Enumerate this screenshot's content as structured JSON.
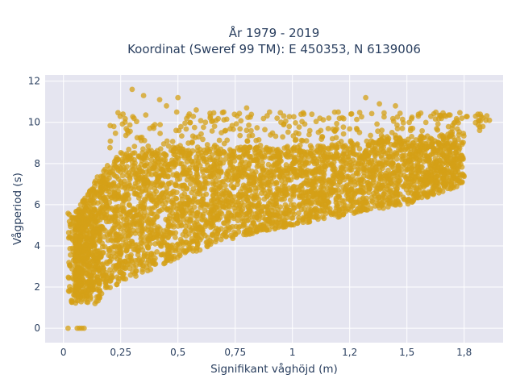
{
  "chart_data": {
    "type": "scatter",
    "title": [
      "År 1979 - 2019",
      "Koordinat (Sweref 99 TM): E 450353, N 6139006"
    ],
    "xlabel": "Signifikant våghöjd (m)",
    "ylabel": "Vågperiod (s)",
    "xlim": [
      -0.08,
      1.92
    ],
    "ylim": [
      -0.7,
      12.3
    ],
    "x_ticks": [
      0,
      0.25,
      0.5,
      0.75,
      1,
      1.25,
      1.5,
      1.75
    ],
    "x_tick_labels": [
      "0",
      "0,25",
      "0,5",
      "0,75",
      "1",
      "1,2",
      "1,5",
      "1,8"
    ],
    "y_ticks": [
      0,
      2,
      4,
      6,
      8,
      10,
      12
    ],
    "y_tick_labels": [
      "0",
      "2",
      "4",
      "6",
      "8",
      "10",
      "12"
    ],
    "grid": true,
    "marker_color": "#d4a017",
    "background_color": "#e5e5f0",
    "envelope": {
      "x": [
        0.05,
        0.15,
        0.25,
        0.5,
        0.75,
        1.0,
        1.25,
        1.5,
        1.75
      ],
      "lower": [
        1.5,
        1.5,
        2.2,
        3.4,
        4.4,
        5.0,
        5.5,
        6.0,
        7.0
      ],
      "upper": [
        5.5,
        7.5,
        8.5,
        8.8,
        8.8,
        8.8,
        9.0,
        9.3,
        9.5
      ]
    },
    "outliers": [
      [
        0.3,
        11.6
      ],
      [
        0.35,
        11.3
      ],
      [
        0.42,
        11.1
      ],
      [
        0.5,
        11.2
      ],
      [
        0.45,
        10.8
      ],
      [
        0.58,
        10.6
      ],
      [
        0.7,
        10.5
      ],
      [
        0.8,
        10.7
      ],
      [
        0.9,
        10.5
      ],
      [
        1.05,
        10.4
      ],
      [
        1.2,
        10.5
      ],
      [
        1.32,
        11.2
      ],
      [
        1.38,
        10.9
      ],
      [
        1.45,
        10.8
      ],
      [
        1.55,
        10.3
      ],
      [
        1.65,
        10.3
      ],
      [
        1.74,
        10.2
      ],
      [
        1.8,
        10.3
      ],
      [
        1.86,
        10.1
      ],
      [
        0.22,
        9.8
      ],
      [
        0.28,
        9.6
      ],
      [
        0.26,
        10.4
      ],
      [
        0.62,
        10.0
      ],
      [
        0.95,
        10.0
      ],
      [
        1.12,
        10.2
      ]
    ],
    "zero_points": [
      [
        0.02,
        0
      ],
      [
        0.06,
        0
      ],
      [
        0.07,
        0
      ],
      [
        0.08,
        0
      ],
      [
        0.09,
        0
      ]
    ]
  }
}
